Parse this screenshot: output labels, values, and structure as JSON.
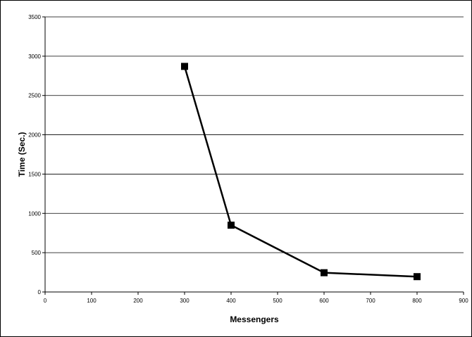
{
  "chart_data": {
    "type": "line",
    "title": "",
    "xlabel": "Messengers",
    "ylabel": "Time (Sec.)",
    "xlim": [
      0,
      900
    ],
    "ylim": [
      0,
      3500
    ],
    "x_ticks": [
      0,
      100,
      200,
      300,
      400,
      500,
      600,
      700,
      800,
      900
    ],
    "y_ticks": [
      0,
      500,
      1000,
      1500,
      2000,
      2500,
      3000,
      3500
    ],
    "grid": "horizontal",
    "legend": "none",
    "series": [
      {
        "marker": "square",
        "color": "#000000",
        "points": [
          {
            "x": 300,
            "y": 2870
          },
          {
            "x": 400,
            "y": 850
          },
          {
            "x": 600,
            "y": 245
          },
          {
            "x": 800,
            "y": 195
          }
        ]
      }
    ]
  }
}
